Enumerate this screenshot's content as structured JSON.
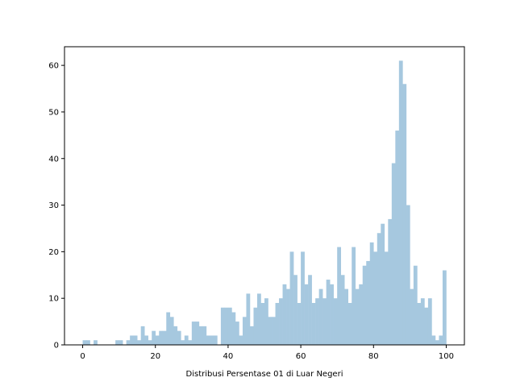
{
  "chart_data": {
    "type": "bar",
    "title": "",
    "xlabel": "Distribusi Persentase 01 di Luar Negeri",
    "ylabel": "",
    "xlim": [
      -5,
      105
    ],
    "ylim": [
      0,
      64
    ],
    "xticks": [
      0,
      20,
      40,
      60,
      80,
      100
    ],
    "yticks": [
      0,
      10,
      20,
      30,
      40,
      50,
      60
    ],
    "bin_start": 0,
    "bin_width": 1,
    "bar_color": "#a6c8df",
    "grid": false,
    "legend": "none",
    "counts": [
      1,
      1,
      0,
      1,
      0,
      0,
      0,
      0,
      0,
      1,
      1,
      0,
      1,
      2,
      2,
      1,
      4,
      2,
      1,
      3,
      2,
      3,
      3,
      7,
      6,
      4,
      3,
      1,
      2,
      1,
      5,
      5,
      4,
      4,
      2,
      2,
      2,
      0,
      8,
      8,
      8,
      7,
      5,
      2,
      6,
      11,
      4,
      8,
      11,
      9,
      10,
      6,
      6,
      9,
      10,
      13,
      12,
      20,
      15,
      9,
      20,
      13,
      15,
      9,
      10,
      12,
      10,
      14,
      13,
      10,
      21,
      15,
      12,
      9,
      21,
      12,
      13,
      17,
      18,
      22,
      20,
      24,
      26,
      20,
      27,
      39,
      46,
      61,
      56,
      30,
      12,
      17,
      9,
      10,
      8,
      10,
      2,
      1,
      2,
      16
    ]
  }
}
